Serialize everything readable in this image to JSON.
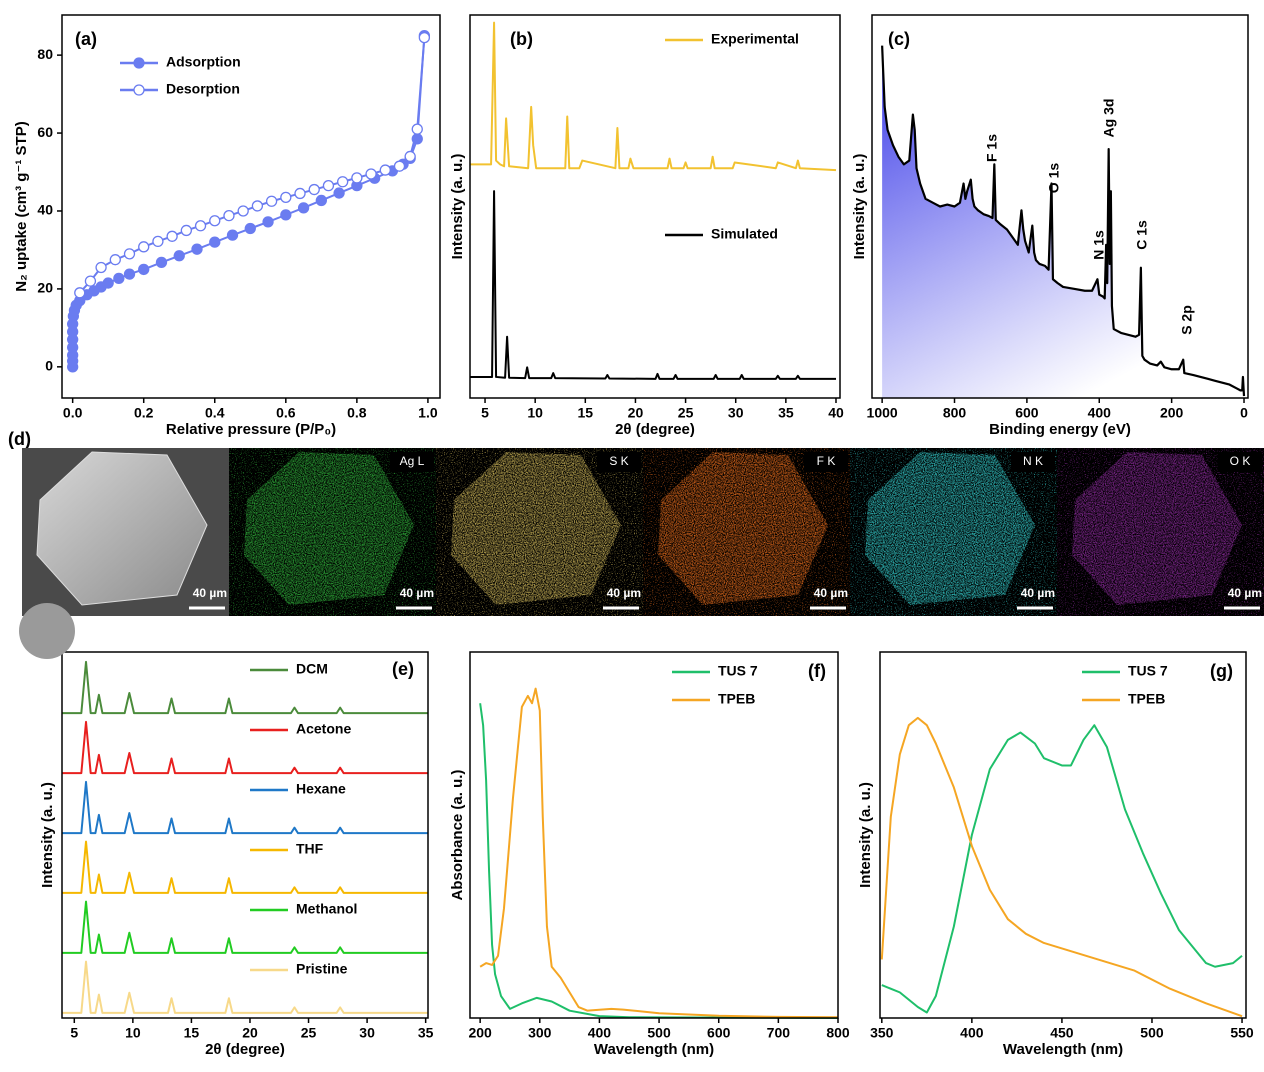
{
  "chart_data": [
    {
      "type": "line",
      "panel_label": "(a)",
      "x_label": "Relative pressure (P/P₀)",
      "y_label": "N₂ uptake (cm³ g⁻¹ STP)",
      "xlim": [
        -0.03,
        1.034
      ],
      "ylim": [
        -8,
        90.3
      ],
      "xticks": [
        {
          "value": 0,
          "label": "0.0"
        },
        0.2,
        0.4,
        0.6,
        0.8,
        {
          "value": 1,
          "label": "1.0"
        }
      ],
      "yticks": [
        0,
        20,
        40,
        60,
        80
      ],
      "series": [
        {
          "name": "Adsorption",
          "color": "#6a7cf0",
          "marker": "filled",
          "x": [
            0,
            0,
            0,
            0,
            0,
            0,
            0,
            0.002,
            0.005,
            0.01,
            0.02,
            0.04,
            0.06,
            0.08,
            0.1,
            0.13,
            0.16,
            0.2,
            0.25,
            0.3,
            0.35,
            0.4,
            0.45,
            0.5,
            0.55,
            0.6,
            0.65,
            0.7,
            0.75,
            0.8,
            0.85,
            0.9,
            0.93,
            0.95,
            0.97,
            0.99
          ],
          "values": [
            0,
            1.5,
            3,
            5,
            7,
            9,
            11,
            13,
            14.5,
            15.8,
            17,
            18.5,
            19.5,
            20.5,
            21.5,
            22.7,
            23.8,
            25,
            26.8,
            28.5,
            30.2,
            32,
            33.8,
            35.5,
            37.2,
            39,
            40.8,
            42.7,
            44.6,
            46.5,
            48.4,
            50.3,
            52,
            53.5,
            58.5,
            85
          ]
        },
        {
          "name": "Desorption",
          "color": "#6a7cf0",
          "marker": "open",
          "x": [
            0.99,
            0.97,
            0.95,
            0.92,
            0.88,
            0.84,
            0.8,
            0.76,
            0.72,
            0.68,
            0.64,
            0.6,
            0.56,
            0.52,
            0.48,
            0.44,
            0.4,
            0.36,
            0.32,
            0.28,
            0.24,
            0.2,
            0.16,
            0.12,
            0.08,
            0.05,
            0.02
          ],
          "values": [
            84.5,
            61,
            54,
            51.5,
            50.5,
            49.5,
            48.5,
            47.5,
            46.5,
            45.5,
            44.5,
            43.5,
            42.5,
            41.3,
            40,
            38.8,
            37.5,
            36.2,
            35,
            33.5,
            32.2,
            30.8,
            29,
            27.5,
            25.5,
            22,
            19
          ]
        }
      ]
    },
    {
      "type": "line",
      "panel_label": "(b)",
      "x_label": "2θ (degree)",
      "y_label": "Intensity (a. u.)",
      "xlim": [
        3.5,
        40.4
      ],
      "ylim": [
        0,
        100
      ],
      "xticks": [
        5,
        10,
        15,
        20,
        25,
        30,
        35,
        40
      ],
      "series": [
        {
          "name": "Experimental",
          "color": "#f2c230",
          "x": [
            3.5,
            5.6,
            5.9,
            6.1,
            6.5,
            6.9,
            7.1,
            7.4,
            9.3,
            9.6,
            9.8,
            10.1,
            13.0,
            13.2,
            13.4,
            14.4,
            14.7,
            18.0,
            18.2,
            18.4,
            19.3,
            19.5,
            19.8,
            23.2,
            23.4,
            23.6,
            24.8,
            25,
            25.2,
            27.5,
            27.7,
            27.9,
            29.7,
            29.9,
            34,
            34.2,
            36,
            36.2,
            36.4,
            40
          ],
          "values": [
            61,
            61,
            98,
            62,
            61,
            60.5,
            73,
            60.5,
            60,
            76,
            66,
            60,
            60,
            73.5,
            60,
            60,
            62,
            60,
            70.5,
            60,
            60,
            62.5,
            60,
            60,
            62.5,
            60,
            60,
            61.5,
            60,
            60,
            63,
            60,
            60,
            61.5,
            60,
            61.5,
            60,
            62,
            60,
            59.5
          ]
        },
        {
          "name": "Simulated",
          "color": "#000000",
          "x": [
            3.5,
            5.7,
            5.9,
            6.1,
            7.0,
            7.2,
            7.4,
            9.0,
            9.2,
            9.4,
            11.6,
            11.8,
            12.0,
            17,
            17.2,
            17.4,
            22,
            22.2,
            22.4,
            23.8,
            24,
            24.2,
            27.8,
            28,
            28.2,
            30.4,
            30.6,
            30.8,
            34,
            34.2,
            34.4,
            36,
            36.2,
            36.4,
            40
          ],
          "values": [
            5.5,
            5.5,
            54,
            5.5,
            5.3,
            16,
            5.3,
            5.2,
            8,
            5.2,
            5.2,
            6.5,
            5.2,
            5.1,
            6,
            5.1,
            5,
            6.3,
            5,
            5,
            6,
            5,
            5,
            6,
            5,
            5,
            6,
            5,
            5,
            5.8,
            5,
            5,
            5.8,
            5,
            5
          ]
        }
      ]
    },
    {
      "type": "area",
      "panel_label": "(c)",
      "x_label": "Binding energy (eV)",
      "y_label": "Intensity (a. u.)",
      "xlim": [
        1028,
        -11
      ],
      "ylim": [
        0,
        100
      ],
      "xticks": [
        1000,
        800,
        600,
        400,
        200,
        0
      ],
      "annotations": [
        "F 1s",
        "O 1s",
        "N 1s",
        "Ag 3d",
        "C 1s",
        "S 2p"
      ],
      "series": [
        {
          "color": "#000000",
          "x": [
            1000,
            997,
            993,
            985,
            970,
            955,
            940,
            925,
            915,
            910,
            905,
            895,
            880,
            860,
            840,
            820,
            800,
            785,
            775,
            770,
            765,
            755,
            750,
            745,
            735,
            720,
            705,
            695,
            690,
            686,
            675,
            655,
            640,
            625,
            615,
            610,
            605,
            595,
            585,
            580,
            575,
            565,
            550,
            540,
            532,
            528,
            515,
            500,
            470,
            440,
            420,
            410,
            405,
            400,
            390,
            385,
            381,
            378,
            374,
            371,
            368,
            365,
            360,
            340,
            320,
            300,
            290,
            285,
            281,
            275,
            260,
            240,
            230,
            220,
            200,
            180,
            168,
            165,
            140,
            120,
            100,
            80,
            60,
            40,
            20,
            10,
            5,
            3,
            1,
            0
          ],
          "values": [
            92,
            85,
            76,
            70,
            66,
            63,
            61,
            62,
            74,
            70,
            60,
            56,
            52,
            51,
            50,
            50.5,
            50,
            51,
            56,
            52,
            54,
            57,
            52,
            50,
            49,
            48,
            47.5,
            47,
            61,
            46.5,
            45.5,
            44,
            42,
            40,
            49,
            44,
            41,
            38,
            45,
            38,
            36,
            35,
            34.5,
            33.5,
            56,
            31,
            30,
            29,
            28.5,
            28,
            28,
            30,
            31,
            27,
            26.5,
            26,
            40,
            30,
            65,
            35,
            54,
            24,
            18,
            17,
            16.5,
            16,
            16.5,
            34,
            11,
            10,
            9,
            8.5,
            9.5,
            8,
            7.5,
            7.5,
            10,
            6.5,
            6,
            5.5,
            5,
            4.5,
            4,
            3.5,
            2.5,
            2,
            2,
            5.5,
            2,
            0.5
          ]
        }
      ]
    },
    {
      "type": "line",
      "panel_label": "(e)",
      "x_label": "2θ (degree)",
      "y_label": "Intensity (a. u.)",
      "xlim": [
        3.95,
        35.2
      ],
      "ylim": [
        0,
        100
      ],
      "xticks": [
        5,
        10,
        15,
        20,
        25,
        30,
        35
      ],
      "x": [
        3.95,
        5.6,
        6.0,
        6.4,
        6.8,
        7.1,
        7.4,
        9.3,
        9.7,
        10.1,
        13.0,
        13.3,
        13.6,
        17.9,
        18.2,
        18.5,
        23.5,
        23.8,
        24.1,
        27.4,
        27.7,
        28.0,
        35.2
      ],
      "series": [
        {
          "name": "DCM",
          "color": "#4b8b3b",
          "values": [
            83.3,
            83.3,
            97.3,
            83.3,
            83.3,
            88.3,
            83.3,
            83.3,
            88.8,
            83.3,
            83.3,
            87.3,
            83.3,
            83.3,
            87.3,
            83.3,
            83.3,
            84.8,
            83.3,
            83.3,
            84.8,
            83.3,
            83.3
          ]
        },
        {
          "name": "Acetone",
          "color": "#e8201f",
          "values": [
            66.9,
            66.9,
            80.9,
            66.9,
            66.9,
            71.9,
            66.9,
            66.9,
            72.4,
            66.9,
            66.9,
            70.9,
            66.9,
            66.9,
            70.9,
            66.9,
            66.9,
            68.4,
            66.9,
            66.9,
            68.4,
            66.9,
            66.9
          ]
        },
        {
          "name": "Hexane",
          "color": "#1f78c8",
          "values": [
            50.5,
            50.5,
            64.5,
            50.5,
            50.5,
            55.5,
            50.5,
            50.5,
            56,
            50.5,
            50.5,
            54.5,
            50.5,
            50.5,
            54.5,
            50.5,
            50.5,
            52,
            50.5,
            50.5,
            52,
            50.5,
            50.5
          ]
        },
        {
          "name": "THF",
          "color": "#f5b800",
          "values": [
            34.2,
            34.2,
            48.2,
            34.2,
            34.2,
            39.2,
            34.2,
            34.2,
            39.7,
            34.2,
            34.2,
            38.2,
            34.2,
            34.2,
            38.2,
            34.2,
            34.2,
            35.7,
            34.2,
            34.2,
            35.7,
            34.2,
            34.2
          ]
        },
        {
          "name": "Methanol",
          "color": "#22cc22",
          "values": [
            17.8,
            17.8,
            31.8,
            17.8,
            17.8,
            22.8,
            17.8,
            17.8,
            23.3,
            17.8,
            17.8,
            21.8,
            17.8,
            17.8,
            21.8,
            17.8,
            17.8,
            19.3,
            17.8,
            17.8,
            19.3,
            17.8,
            17.8
          ]
        },
        {
          "name": "Pristine",
          "color": "#f7d98a",
          "values": [
            1.4,
            1.4,
            15.4,
            1.4,
            1.4,
            6.4,
            1.4,
            1.4,
            6.9,
            1.4,
            1.4,
            5.4,
            1.4,
            1.4,
            5.4,
            1.4,
            1.4,
            2.9,
            1.4,
            1.4,
            2.9,
            1.4,
            1.4
          ]
        }
      ]
    },
    {
      "type": "line",
      "panel_label": "(f)",
      "x_label": "Wavelength (nm)",
      "y_label": "Absorbance (a. u.)",
      "xlim": [
        183,
        800
      ],
      "ylim": [
        0,
        100
      ],
      "xticks": [
        200,
        300,
        400,
        500,
        600,
        700,
        800
      ],
      "series": [
        {
          "name": "TUS 7",
          "color": "#1fbf6a",
          "x": [
            200,
            205,
            210,
            215,
            220,
            225,
            235,
            250,
            270,
            295,
            320,
            350,
            400,
            450,
            800
          ],
          "values": [
            86,
            80,
            65,
            40,
            20,
            12,
            6,
            2.5,
            4,
            5.5,
            4.5,
            2,
            0.5,
            0.2,
            0
          ]
        },
        {
          "name": "TPEB",
          "color": "#f5a623",
          "x": [
            200,
            210,
            220,
            230,
            240,
            255,
            270,
            280,
            287,
            293,
            300,
            305,
            312,
            320,
            335,
            350,
            365,
            380,
            420,
            440,
            500,
            600,
            700,
            800
          ],
          "values": [
            14,
            15,
            14.5,
            17,
            30,
            60,
            85,
            88,
            86,
            90,
            84,
            55,
            25,
            14,
            11,
            7,
            3,
            2,
            2.5,
            2.3,
            1.3,
            0.6,
            0.3,
            0.2
          ]
        }
      ]
    },
    {
      "type": "line",
      "panel_label": "(g)",
      "x_label": "Wavelength (nm)",
      "y_label": "Intensity (a. u.)",
      "xlim": [
        349,
        552.2
      ],
      "ylim": [
        0,
        100
      ],
      "xticks": [
        350,
        400,
        450,
        500,
        550
      ],
      "series": [
        {
          "name": "TUS 7",
          "color": "#1fbf6a",
          "x": [
            350,
            360,
            370,
            375,
            380,
            390,
            400,
            410,
            420,
            427,
            435,
            440,
            450,
            455,
            462,
            468,
            475,
            485,
            495,
            505,
            515,
            520,
            530,
            535,
            545,
            550
          ],
          "values": [
            9,
            7,
            3,
            1.5,
            6,
            25,
            50,
            68,
            76,
            78,
            75,
            71,
            69,
            69,
            76,
            80,
            74,
            57,
            45,
            34,
            24,
            21,
            15,
            14,
            15,
            17
          ]
        },
        {
          "name": "TPEB",
          "color": "#f5a623",
          "x": [
            350,
            355,
            360,
            365,
            370,
            375,
            380,
            390,
            400,
            410,
            420,
            430,
            440,
            450,
            470,
            490,
            510,
            530,
            550
          ],
          "values": [
            16,
            55,
            72,
            80,
            82,
            80,
            75,
            63,
            47,
            35,
            27,
            23,
            20.5,
            19,
            16,
            13,
            8,
            4,
            0.5
          ]
        }
      ]
    }
  ],
  "panel_d": {
    "label": "(d)",
    "tiles": [
      {
        "color": "#b8b8b8",
        "scale_bar": "40 µm"
      },
      {
        "element": "Ag L",
        "color": "#2fae3a",
        "scale_bar": "40 µm"
      },
      {
        "element": "S K",
        "color": "#c9b257",
        "scale_bar": "40 µm"
      },
      {
        "element": "F K",
        "color": "#e0691c",
        "scale_bar": "40 µm"
      },
      {
        "element": "N K",
        "color": "#33c8c8",
        "scale_bar": "40 µm"
      },
      {
        "element": "O K",
        "color": "#8a2a9a",
        "scale_bar": "40 µm"
      }
    ]
  }
}
